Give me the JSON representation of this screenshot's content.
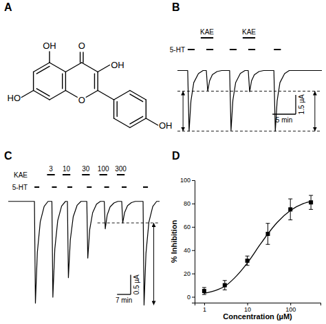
{
  "panels": [
    "A",
    "B",
    "C",
    "D"
  ],
  "structure": {
    "labels": [
      "OH",
      "O",
      "OH",
      "HO",
      "O",
      "OH"
    ]
  },
  "chart_data": [
    {
      "type": "line",
      "color": "#000000",
      "tick_labels": false,
      "x": [
        0,
        2.2,
        2.5,
        2.9,
        3.5,
        4.5,
        5.5,
        6.2,
        6.5,
        6.9,
        7.5,
        8.5,
        9.5,
        11.2,
        11.5,
        11.9,
        12.5,
        13.5,
        14.5,
        15.2,
        15.5,
        15.9,
        16.5,
        17.5,
        18.5,
        20.7,
        21,
        21.4,
        22,
        23,
        24,
        31
      ],
      "values": [
        0,
        0,
        -4.7,
        -2.35,
        -0.94,
        -0.24,
        0,
        0,
        -1.6,
        -0.8,
        -0.32,
        -0.08,
        0,
        0,
        -4.65,
        -2.3,
        -0.93,
        -0.23,
        0,
        0,
        -1.65,
        -0.8,
        -0.33,
        -0.08,
        0,
        0,
        -4.7,
        -2.35,
        -0.94,
        -0.24,
        0,
        0
      ],
      "xlim": [
        0,
        31
      ],
      "ylim": [
        -5.2,
        1.2
      ],
      "applications": [
        {
          "bars": [
            {
              "label": "KAE",
              "start": 5,
              "end": 7.7
            },
            {
              "label": "KAE",
              "start": 14,
              "end": 16.7
            }
          ]
        },
        {
          "label": "5-HT",
          "bars": [
            {
              "start": 2.2,
              "end": 3.7
            },
            {
              "start": 6.2,
              "end": 7.7
            },
            {
              "start": 11.2,
              "end": 12.7
            },
            {
              "start": 15.2,
              "end": 16.7
            },
            {
              "start": 20.7,
              "end": 22.2
            }
          ]
        }
      ],
      "dashed": {
        "levels": [
          -1.6,
          -4.7
        ],
        "x": [
          0,
          31
        ]
      },
      "arrows": {
        "from": -1.6,
        "to": -4.7,
        "x": [
          1.2,
          29.5
        ]
      },
      "scale_bar": {
        "x": 5,
        "x_label": "5 min",
        "y": 1.5,
        "y_label": "1.5 µA"
      }
    },
    {
      "type": "line",
      "color": "#000000",
      "tick_labels": false,
      "x": [
        0,
        13.5,
        14,
        15,
        16.5,
        18.5,
        20.5,
        22.5,
        23,
        24,
        25.5,
        27.5,
        29.5,
        30.5,
        31,
        32,
        33.5,
        35.5,
        37.5,
        40.5,
        41,
        42,
        43.5,
        45.5,
        47.5,
        49.5,
        50,
        51,
        52.5,
        54.5,
        56.5,
        58.5,
        59,
        60,
        61.5,
        63.5,
        65.5,
        69.5,
        70,
        71,
        72.5,
        74.5,
        76.5,
        78
      ],
      "values": [
        0,
        0,
        -2.6,
        -1.3,
        -0.52,
        -0.13,
        0,
        0,
        -2.45,
        -1.22,
        -0.49,
        -0.12,
        0,
        0,
        -1.95,
        -0.98,
        -0.39,
        -0.1,
        0,
        0,
        -1.45,
        -0.72,
        -0.29,
        -0.07,
        0,
        0,
        -0.7,
        -0.35,
        -0.14,
        -0.04,
        0,
        0,
        -0.55,
        -0.28,
        -0.11,
        -0.03,
        0,
        0,
        -2.65,
        -1.32,
        -0.53,
        -0.13,
        0,
        0
      ],
      "xlim": [
        0,
        78
      ],
      "ylim": [
        -2.8,
        0.4
      ],
      "applications": [
        {
          "label": "KAE",
          "bars": [
            {
              "value": 3,
              "start": 20,
              "end": 24
            },
            {
              "value": 10,
              "start": 28,
              "end": 32
            },
            {
              "value": 30,
              "start": 38,
              "end": 42
            },
            {
              "value": 100,
              "start": 47,
              "end": 51
            },
            {
              "value": 300,
              "start": 56,
              "end": 60
            }
          ]
        },
        {
          "label": "5-HT",
          "bars": [
            {
              "start": 13.5,
              "end": 16
            },
            {
              "start": 22.5,
              "end": 25
            },
            {
              "start": 30.5,
              "end": 33
            },
            {
              "start": 40.5,
              "end": 43
            },
            {
              "start": 49.5,
              "end": 52
            },
            {
              "start": 58.5,
              "end": 61
            },
            {
              "start": 69.5,
              "end": 72
            }
          ]
        }
      ],
      "dashed": {
        "levels": [
          -0.55
        ],
        "x": [
          46,
          78
        ]
      },
      "arrows": {
        "from": -0.55,
        "to": -2.65,
        "x": [
          75
        ]
      },
      "scale_bar": {
        "x": 7,
        "x_label": "7 min",
        "y": 0.5,
        "y_label": "0.5 µA"
      }
    },
    {
      "type": "scatter",
      "x_label": "Concentration (µM)",
      "y_label": "% Inhibition",
      "log": "x",
      "xlim": [
        0.6,
        500
      ],
      "ylim": [
        -5,
        100
      ],
      "xticks": [
        1,
        10,
        100
      ],
      "yticks": [
        0,
        20,
        40,
        60,
        80,
        100
      ],
      "series": [
        {
          "type": "scatter",
          "marker": "square",
          "color": "#000000",
          "x": [
            1,
            3,
            10,
            30,
            100,
            300
          ],
          "values": [
            5,
            10,
            31,
            54,
            75,
            81
          ],
          "errors": [
            3,
            4,
            4,
            9,
            9,
            6
          ]
        },
        {
          "type": "line",
          "line_style": "solid",
          "color": "#000000",
          "x": [
            1,
            2,
            3,
            5,
            10,
            20,
            30,
            50,
            100,
            200,
            300
          ],
          "values": [
            3,
            6,
            9,
            16,
            29,
            45,
            54,
            64,
            74,
            80,
            82
          ]
        }
      ]
    }
  ]
}
